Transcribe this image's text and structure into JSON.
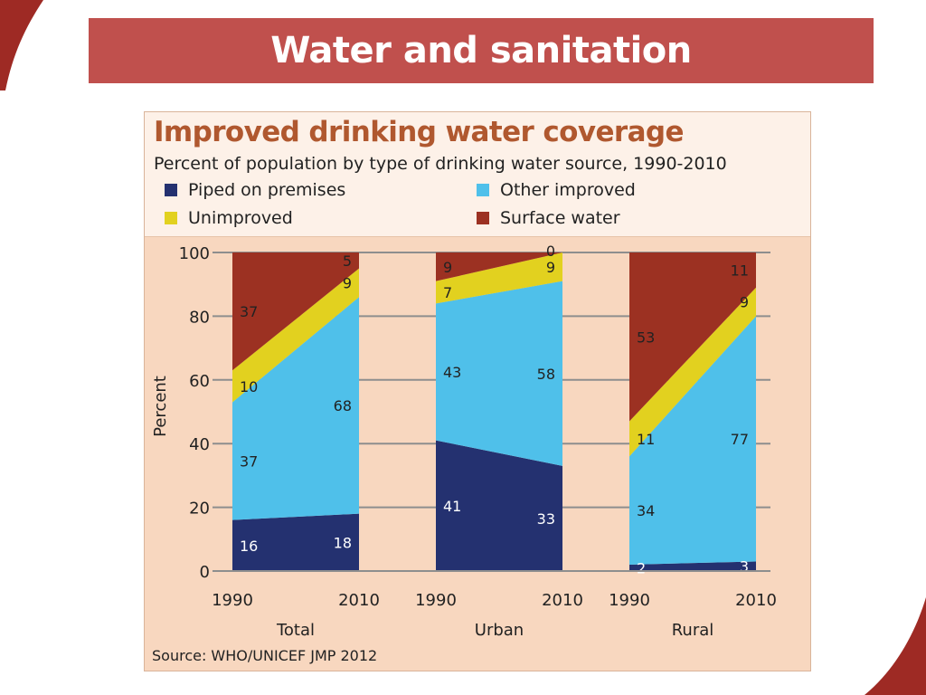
{
  "slide_title": "Water and sanitation",
  "colors": {
    "banner": "#c0504d",
    "piped": "#243170",
    "other": "#4fc0ea",
    "unimproved": "#e2d11f",
    "surface": "#9c3122",
    "title_text": "#b0582f"
  },
  "chart_data": {
    "type": "area",
    "title": "Improved drinking water coverage",
    "subtitle": "Percent of population by type of drinking water source, 1990-2010",
    "ylabel": "Percent",
    "xlabel": "",
    "ylim": [
      0,
      100
    ],
    "yticks": [
      "0",
      "20",
      "40",
      "60",
      "80",
      "100"
    ],
    "grid": true,
    "legend_position": "top",
    "legend": [
      {
        "key": "piped",
        "label": "Piped on premises"
      },
      {
        "key": "other",
        "label": "Other improved"
      },
      {
        "key": "unimproved",
        "label": "Unimproved"
      },
      {
        "key": "surface",
        "label": "Surface water"
      }
    ],
    "groups": [
      {
        "name": "Total",
        "years": [
          "1990",
          "2010"
        ],
        "values": {
          "piped": [
            16,
            18
          ],
          "other": [
            37,
            68
          ],
          "unimproved": [
            10,
            9
          ],
          "surface": [
            37,
            5
          ]
        }
      },
      {
        "name": "Urban",
        "years": [
          "1990",
          "2010"
        ],
        "values": {
          "piped": [
            41,
            33
          ],
          "other": [
            43,
            58
          ],
          "unimproved": [
            7,
            9
          ],
          "surface": [
            9,
            0
          ]
        }
      },
      {
        "name": "Rural",
        "years": [
          "1990",
          "2010"
        ],
        "values": {
          "piped": [
            2,
            3
          ],
          "other": [
            34,
            77
          ],
          "unimproved": [
            11,
            9
          ],
          "surface": [
            53,
            11
          ]
        }
      }
    ],
    "source": "Source:  WHO/UNICEF JMP 2012"
  }
}
